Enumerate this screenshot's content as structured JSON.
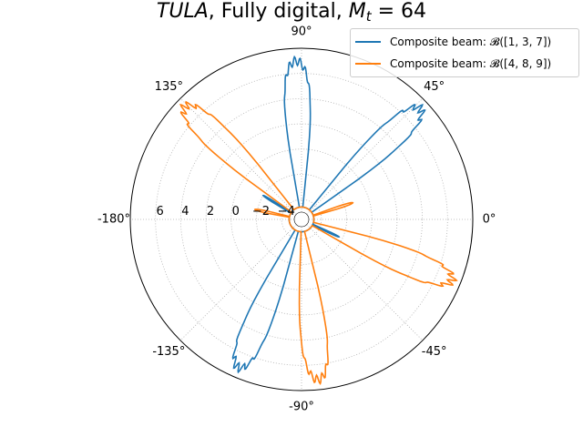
{
  "title": {
    "italic_part": "TULA",
    "middle_part": ", Fully digital, ",
    "math_part": "M",
    "math_sub": "t",
    "math_rest": " = 64"
  },
  "legend": {
    "items": [
      {
        "label": "Composite beam: 𝓑([1, 3, 7])",
        "color": "#1f77b4"
      },
      {
        "label": "Composite beam: 𝓑([4, 8, 9])",
        "color": "#ff7f0e"
      }
    ]
  },
  "chart_data": {
    "type": "polar",
    "angle_ticks": [
      {
        "deg": 0,
        "label": "0°"
      },
      {
        "deg": 45,
        "label": "45°"
      },
      {
        "deg": 90,
        "label": "90°"
      },
      {
        "deg": 135,
        "label": "135°"
      },
      {
        "deg": 180,
        "label": "-180°"
      },
      {
        "deg": -135,
        "label": "-135°"
      },
      {
        "deg": -90,
        "label": "-90°"
      },
      {
        "deg": -45,
        "label": "-45°"
      }
    ],
    "radial_ticks": [
      {
        "value": -4,
        "label": "−4"
      },
      {
        "value": -2,
        "label": "−2"
      },
      {
        "value": 0,
        "label": "0"
      },
      {
        "value": 2,
        "label": "2"
      },
      {
        "value": 4,
        "label": "4"
      },
      {
        "value": 6,
        "label": "6"
      }
    ],
    "rlim": [
      -5,
      8
    ],
    "grid": true,
    "series": [
      {
        "name": "Composite beam: 𝓑([1, 3, 7])",
        "color": "#1f77b4",
        "floor": -4.6,
        "lobes": [
          {
            "center_deg": 92,
            "width_deg": 8,
            "peak": 7.0
          },
          {
            "center_deg": 43,
            "width_deg": 8,
            "peak": 7.3
          },
          {
            "center_deg": -113,
            "width_deg": 8,
            "peak": 7.2
          },
          {
            "center_deg": 148,
            "width_deg": 1.5,
            "peak": -2.0
          },
          {
            "center_deg": -25,
            "width_deg": 1.5,
            "peak": -2.3
          }
        ]
      },
      {
        "name": "Composite beam: 𝓑([4, 8, 9])",
        "color": "#ff7f0e",
        "floor": -4.6,
        "lobes": [
          {
            "center_deg": 136,
            "width_deg": 8,
            "peak": 7.3
          },
          {
            "center_deg": -22,
            "width_deg": 8,
            "peak": 7.3
          },
          {
            "center_deg": -84,
            "width_deg": 8,
            "peak": 7.2
          },
          {
            "center_deg": 18,
            "width_deg": 2,
            "peak": -1.3
          },
          {
            "center_deg": 168,
            "width_deg": 2,
            "peak": -1.8
          }
        ]
      }
    ]
  }
}
